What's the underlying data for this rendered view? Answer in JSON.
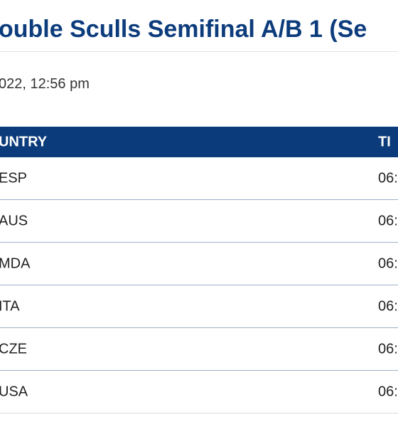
{
  "header": {
    "title": "ouble Sculls Semifinal A/B 1 (Se",
    "date": "022, 12:56 pm"
  },
  "table": {
    "columns": [
      "UNTRY",
      "TI"
    ],
    "rows": [
      [
        "ESP",
        "06:"
      ],
      [
        "AUS",
        "06:"
      ],
      [
        "MDA",
        "06:"
      ],
      [
        "ITA",
        "06:"
      ],
      [
        "CZE",
        "06:"
      ],
      [
        "USA",
        "06:"
      ]
    ]
  }
}
